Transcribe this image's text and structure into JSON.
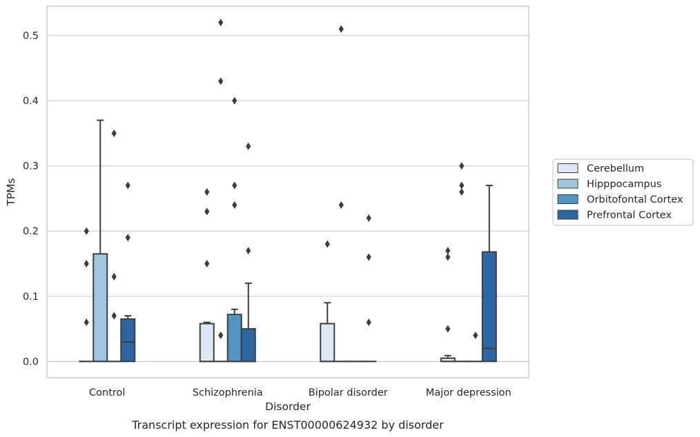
{
  "caption": "Transcript expression for ENST00000624932 by disorder",
  "chart_data": {
    "type": "box",
    "xlabel": "Disorder",
    "ylabel": "TPMs",
    "ylim": [
      -0.025,
      0.545
    ],
    "yticks": [
      0.0,
      0.1,
      0.2,
      0.3,
      0.4,
      0.5
    ],
    "ytick_labels": [
      "0.0",
      "0.1",
      "0.2",
      "0.3",
      "0.4",
      "0.5"
    ],
    "grid": "horizontal",
    "legend_position": "right",
    "categories": [
      "Control",
      "Schizophrenia",
      "Bipolar disorder",
      "Major depression"
    ],
    "series": [
      {
        "name": "Cerebellum",
        "color": "#dbe8f5",
        "boxes": [
          {
            "q1": 0,
            "median": 0,
            "q3": 0,
            "whisker_low": 0,
            "whisker_high": 0,
            "outliers": [
              0.2,
              0.15,
              0.06
            ]
          },
          {
            "q1": 0,
            "median": 0,
            "q3": 0.058,
            "whisker_low": 0,
            "whisker_high": 0.06,
            "outliers": [
              0.26,
              0.23,
              0.15
            ]
          },
          {
            "q1": 0,
            "median": 0,
            "q3": 0.058,
            "whisker_low": 0,
            "whisker_high": 0.09,
            "outliers": [
              0.18
            ]
          },
          {
            "q1": 0,
            "median": 0,
            "q3": 0.005,
            "whisker_low": 0,
            "whisker_high": 0.009,
            "outliers": [
              0.17,
              0.16,
              0.05
            ]
          }
        ]
      },
      {
        "name": "Hipppocampus",
        "color": "#9fc6df",
        "boxes": [
          {
            "q1": 0,
            "median": 0,
            "q3": 0.165,
            "whisker_low": 0,
            "whisker_high": 0.37,
            "outliers": []
          },
          {
            "q1": 0,
            "median": 0,
            "q3": 0,
            "whisker_low": 0,
            "whisker_high": 0,
            "outliers": [
              0.52,
              0.43,
              0.04
            ]
          },
          {
            "q1": 0,
            "median": 0,
            "q3": 0,
            "whisker_low": 0,
            "whisker_high": 0,
            "outliers": [
              0.51,
              0.24
            ]
          },
          {
            "q1": 0,
            "median": 0,
            "q3": 0,
            "whisker_low": 0,
            "whisker_high": 0,
            "outliers": [
              0.3,
              0.27,
              0.26
            ]
          }
        ]
      },
      {
        "name": "Orbitofontal Cortex",
        "color": "#5294c3",
        "boxes": [
          {
            "q1": 0,
            "median": 0,
            "q3": 0,
            "whisker_low": 0,
            "whisker_high": 0,
            "outliers": [
              0.35,
              0.13,
              0.07
            ]
          },
          {
            "q1": 0,
            "median": 0,
            "q3": 0.072,
            "whisker_low": 0,
            "whisker_high": 0.08,
            "outliers": [
              0.4,
              0.27,
              0.24
            ]
          },
          {
            "q1": 0,
            "median": 0,
            "q3": 0,
            "whisker_low": 0,
            "whisker_high": 0,
            "outliers": []
          },
          {
            "q1": 0,
            "median": 0,
            "q3": 0,
            "whisker_low": 0,
            "whisker_high": 0,
            "outliers": [
              0.04
            ]
          }
        ]
      },
      {
        "name": "Prefrontal Cortex",
        "color": "#2a67a4",
        "boxes": [
          {
            "q1": 0,
            "median": 0.03,
            "q3": 0.065,
            "whisker_low": 0,
            "whisker_high": 0.07,
            "outliers": [
              0.27,
              0.19
            ]
          },
          {
            "q1": 0,
            "median": 0,
            "q3": 0.05,
            "whisker_low": 0,
            "whisker_high": 0.12,
            "outliers": [
              0.33,
              0.17
            ]
          },
          {
            "q1": 0,
            "median": 0,
            "q3": 0,
            "whisker_low": 0,
            "whisker_high": 0,
            "outliers": [
              0.22,
              0.16,
              0.06
            ]
          },
          {
            "q1": 0,
            "median": 0.02,
            "q3": 0.168,
            "whisker_low": 0,
            "whisker_high": 0.27,
            "outliers": []
          }
        ]
      }
    ]
  }
}
